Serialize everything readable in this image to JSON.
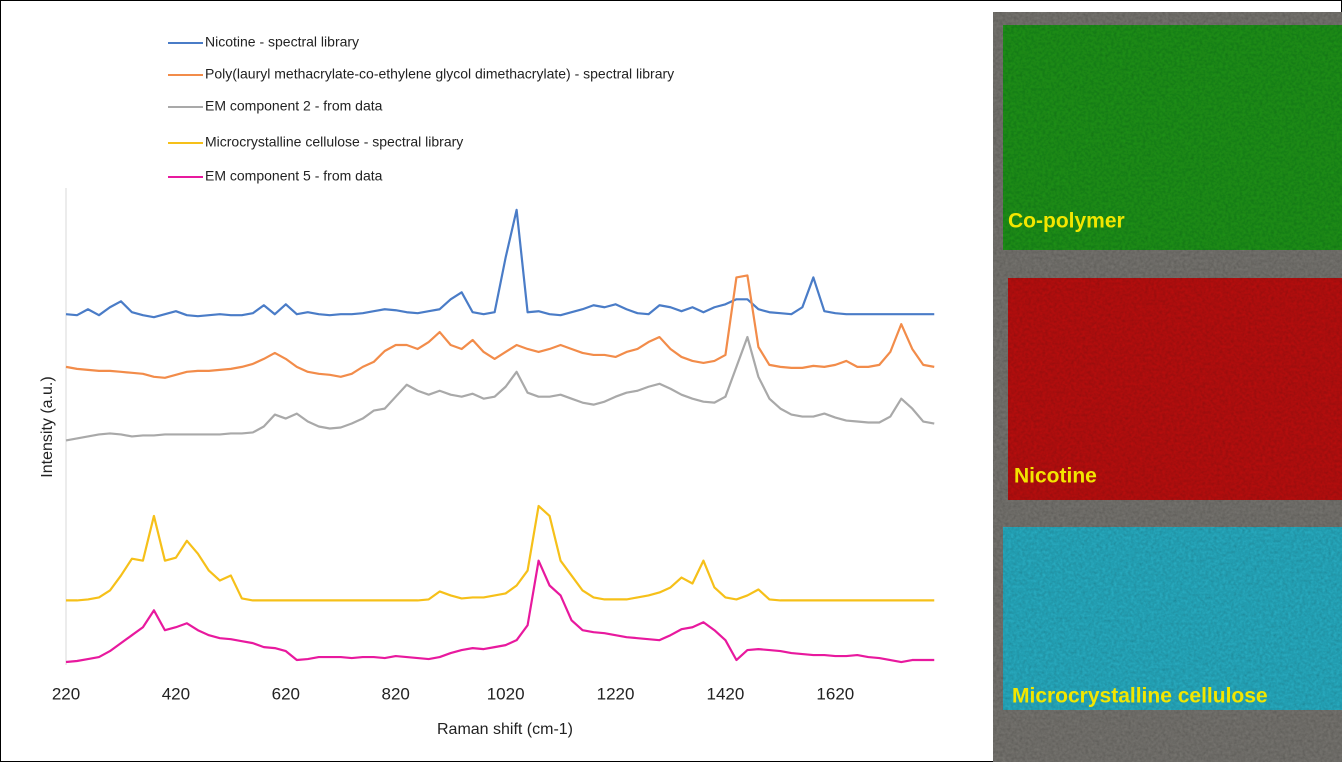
{
  "chart_data": {
    "type": "line",
    "x_label": "Raman shift (cm-1)",
    "y_label": "Intensity (a.u.)",
    "xlim": [
      220,
      1805
    ],
    "ylim": [
      0,
      480
    ],
    "xticks": [
      220,
      420,
      620,
      820,
      1020,
      1220,
      1420,
      1620
    ],
    "x": [
      220,
      240,
      260,
      280,
      300,
      320,
      340,
      360,
      380,
      400,
      420,
      440,
      460,
      480,
      500,
      520,
      540,
      560,
      580,
      600,
      620,
      640,
      660,
      680,
      700,
      720,
      740,
      760,
      780,
      800,
      820,
      840,
      860,
      880,
      900,
      920,
      940,
      960,
      980,
      1000,
      1020,
      1040,
      1060,
      1080,
      1100,
      1120,
      1140,
      1160,
      1180,
      1200,
      1220,
      1240,
      1260,
      1280,
      1300,
      1320,
      1340,
      1360,
      1380,
      1400,
      1420,
      1440,
      1460,
      1480,
      1500,
      1520,
      1540,
      1560,
      1580,
      1600,
      1620,
      1640,
      1660,
      1680,
      1700,
      1720,
      1740,
      1760,
      1780,
      1800
    ],
    "series": [
      {
        "name": "Nicotine - spectral library",
        "color": "#4a7cc7",
        "values": [
          353,
          352,
          358,
          352,
          360,
          366,
          355,
          352,
          350,
          353,
          356,
          352,
          351,
          352,
          353,
          352,
          352,
          354,
          362,
          353,
          363,
          353,
          355,
          353,
          352,
          353,
          353,
          354,
          356,
          358,
          357,
          355,
          354,
          356,
          358,
          368,
          375,
          355,
          353,
          355,
          410,
          458,
          355,
          356,
          353,
          352,
          355,
          358,
          362,
          360,
          363,
          358,
          354,
          353,
          362,
          360,
          356,
          360,
          355,
          360,
          363,
          368,
          368,
          358,
          355,
          354,
          353,
          360,
          390,
          356,
          354,
          353,
          353,
          353,
          353,
          353,
          353,
          353,
          353,
          353
        ]
      },
      {
        "name": "Poly(lauryl methacrylate-co-ethylene glycol dimethacrylate) - spectral library",
        "color": "#f28c4a",
        "values": [
          300,
          298,
          297,
          296,
          296,
          295,
          294,
          293,
          290,
          289,
          292,
          295,
          296,
          296,
          297,
          298,
          300,
          303,
          308,
          314,
          308,
          300,
          295,
          293,
          292,
          290,
          293,
          300,
          305,
          316,
          322,
          322,
          318,
          325,
          335,
          322,
          318,
          327,
          315,
          308,
          315,
          322,
          318,
          315,
          318,
          322,
          318,
          314,
          312,
          312,
          310,
          315,
          318,
          325,
          330,
          318,
          310,
          306,
          304,
          306,
          312,
          390,
          392,
          320,
          302,
          300,
          299,
          299,
          301,
          300,
          302,
          306,
          300,
          300,
          302,
          315,
          343,
          318,
          302,
          300
        ]
      },
      {
        "name": "EM component 2 - from data",
        "color": "#a9a9a9",
        "values": [
          226,
          228,
          230,
          232,
          233,
          232,
          230,
          231,
          231,
          232,
          232,
          232,
          232,
          232,
          232,
          233,
          233,
          234,
          240,
          252,
          248,
          253,
          245,
          240,
          238,
          239,
          243,
          248,
          256,
          258,
          270,
          282,
          276,
          272,
          276,
          272,
          270,
          273,
          268,
          270,
          280,
          295,
          274,
          270,
          270,
          272,
          268,
          264,
          262,
          265,
          270,
          274,
          276,
          280,
          283,
          278,
          272,
          268,
          265,
          264,
          270,
          300,
          330,
          290,
          268,
          258,
          252,
          250,
          250,
          253,
          249,
          246,
          245,
          244,
          244,
          250,
          268,
          258,
          245,
          243
        ]
      },
      {
        "name": "Microcrystalline cellulose - spectral library",
        "color": "#f6c019",
        "values": [
          65,
          65,
          66,
          68,
          75,
          90,
          107,
          105,
          150,
          105,
          108,
          125,
          112,
          95,
          85,
          90,
          67,
          65,
          65,
          65,
          65,
          65,
          65,
          65,
          65,
          65,
          65,
          65,
          65,
          65,
          65,
          65,
          65,
          66,
          74,
          70,
          67,
          68,
          68,
          70,
          72,
          80,
          95,
          160,
          150,
          105,
          90,
          75,
          68,
          66,
          66,
          66,
          68,
          70,
          73,
          78,
          88,
          82,
          105,
          78,
          68,
          66,
          70,
          76,
          66,
          65,
          65,
          65,
          65,
          65,
          65,
          65,
          65,
          65,
          65,
          65,
          65,
          65,
          65,
          65
        ]
      },
      {
        "name": "EM component 5 - from data",
        "color": "#e8199e",
        "values": [
          3,
          4,
          6,
          8,
          14,
          22,
          30,
          38,
          55,
          35,
          38,
          42,
          35,
          30,
          27,
          26,
          24,
          22,
          18,
          17,
          14,
          5,
          6,
          8,
          8,
          8,
          7,
          8,
          8,
          7,
          9,
          8,
          7,
          6,
          8,
          12,
          15,
          17,
          16,
          18,
          20,
          25,
          40,
          105,
          80,
          70,
          45,
          35,
          33,
          32,
          30,
          28,
          27,
          26,
          25,
          30,
          36,
          38,
          43,
          35,
          25,
          5,
          15,
          16,
          15,
          14,
          12,
          11,
          10,
          10,
          9,
          9,
          10,
          8,
          7,
          5,
          3,
          5,
          5,
          5
        ]
      }
    ]
  },
  "images": [
    {
      "label": "Co-polymer"
    },
    {
      "label": "Nicotine"
    },
    {
      "label": "Microcrystalline cellulose"
    }
  ]
}
